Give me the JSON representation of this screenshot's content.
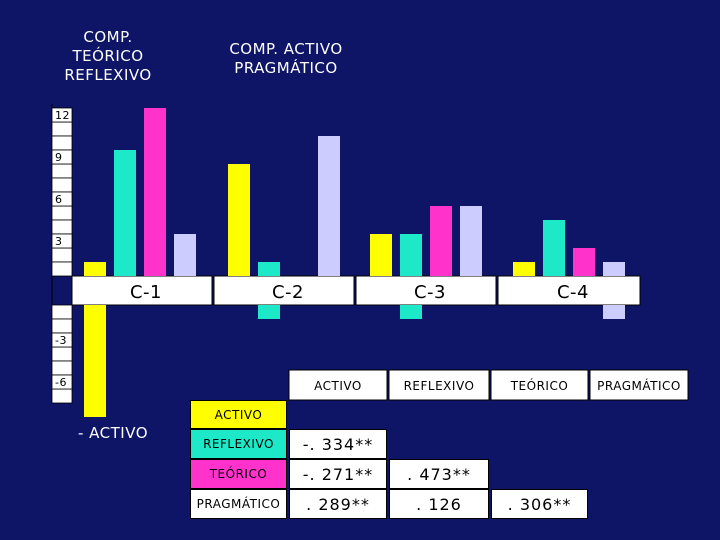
{
  "headers": {
    "left": [
      "COMP.",
      "TEÓRICO",
      "REFLEXIVO"
    ],
    "right": [
      "COMP. ACTIVO",
      "PRAGMÁTICO"
    ]
  },
  "colors": {
    "background": "#0e1466",
    "activo": "#ffff00",
    "reflexivo": "#1de9c8",
    "teorico": "#ff33cc",
    "pragmatico": "#ccccff"
  },
  "chart_data": {
    "type": "bar",
    "categories": [
      "C-1",
      "C-2",
      "C-3",
      "C-4"
    ],
    "series": [
      {
        "name": "ACTIVO",
        "values": [
          1,
          8,
          3,
          1
        ]
      },
      {
        "name": "REFLEXIVO",
        "values": [
          9,
          1,
          3,
          4
        ]
      },
      {
        "name": "TEÓRICO",
        "values": [
          12,
          0,
          5,
          2
        ]
      },
      {
        "name": "PRAGMÁTICO",
        "values": [
          3,
          10,
          5,
          1
        ]
      }
    ],
    "negative_series": [
      {
        "name": "ACTIVO",
        "values": [
          -8,
          0,
          0,
          0
        ]
      },
      {
        "name": "REFLEXIVO",
        "values": [
          0,
          -1,
          -1,
          0
        ]
      },
      {
        "name": "TEÓRICO",
        "values": [
          0,
          0,
          0,
          0
        ]
      },
      {
        "name": "PRAGMÁTICO",
        "values": [
          0,
          0,
          0,
          -1
        ]
      }
    ],
    "yticks": [
      12,
      9,
      6,
      3,
      -3,
      -6
    ],
    "ylim": [
      -8,
      12
    ],
    "legend": [
      "ACTIVO",
      "REFLEXIVO",
      "TEÓRICO",
      "PRAGMÁTICO"
    ]
  },
  "negative_pole_label": "- ACTIVO",
  "correlation_table": {
    "column_header": "ACTIVO",
    "rows": [
      {
        "label": "REFLEXIVO",
        "values": [
          "-. 334**"
        ]
      },
      {
        "label": "TEÓRICO",
        "values": [
          "-. 271**",
          ". 473**"
        ]
      },
      {
        "label": "PRAGMÁTICO",
        "values": [
          ". 289**",
          ". 126",
          ". 306**"
        ]
      }
    ]
  }
}
